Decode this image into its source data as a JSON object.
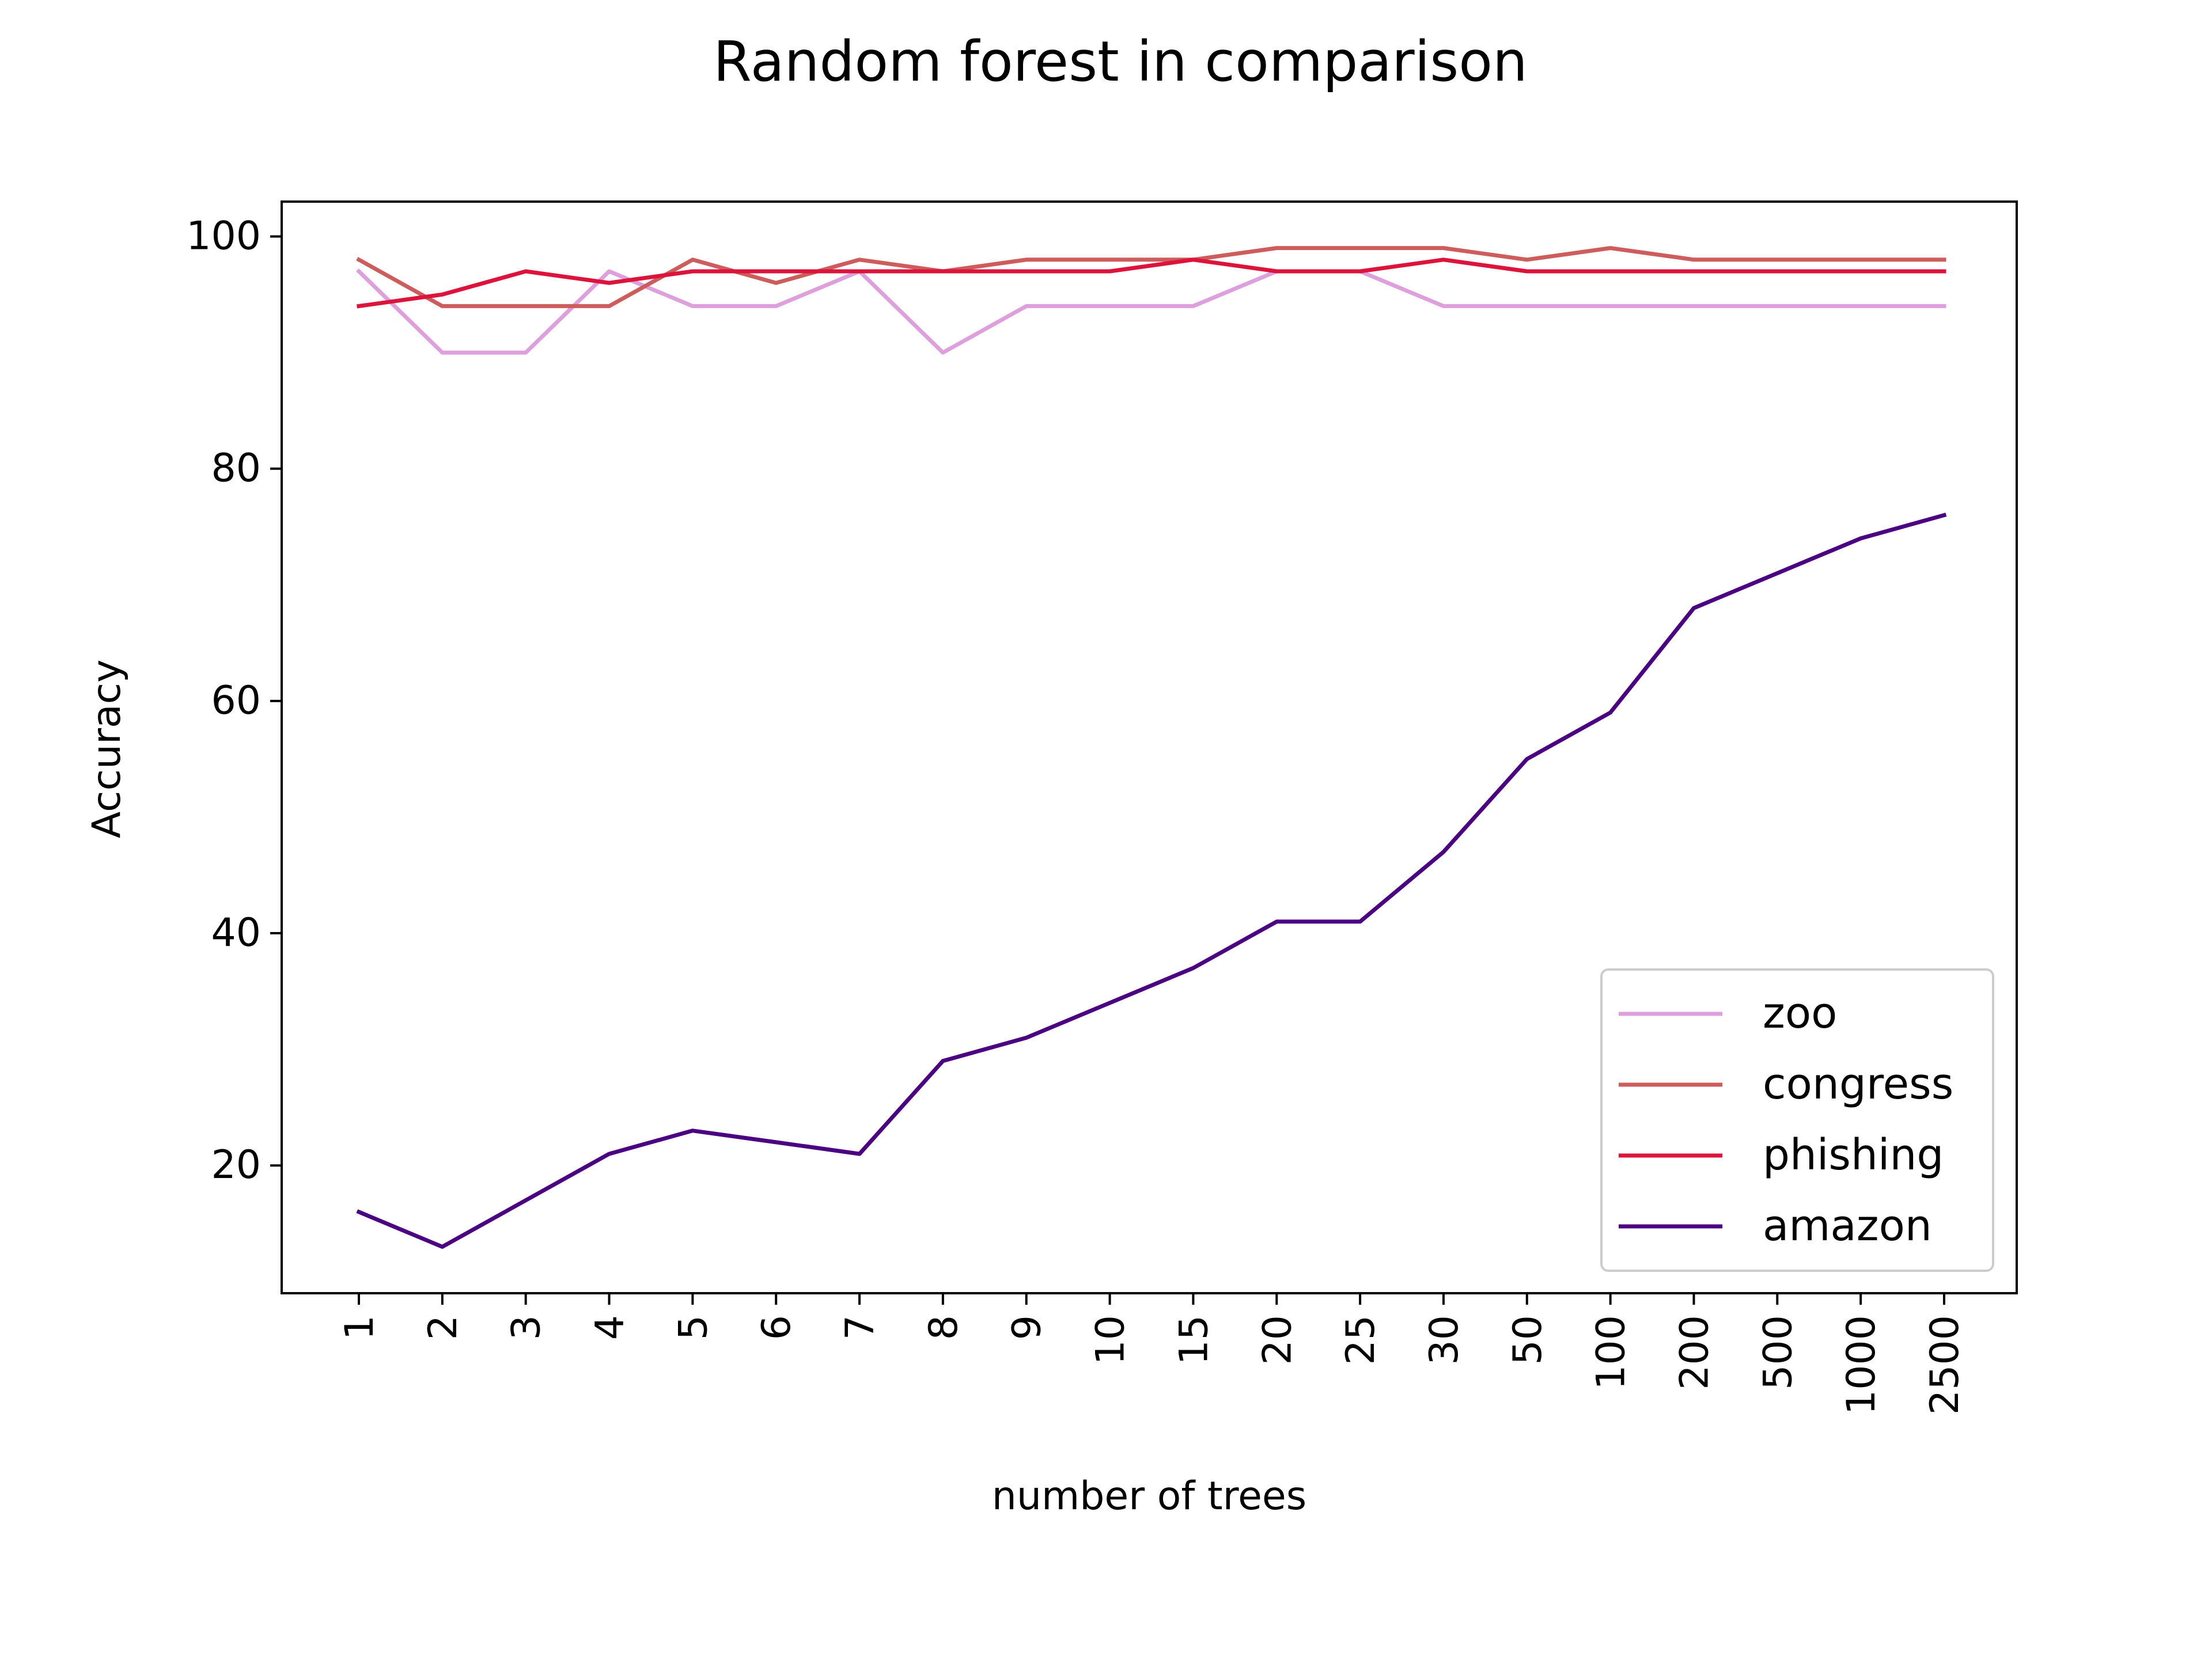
{
  "chart_data": {
    "type": "line",
    "title": "Random forest in comparison",
    "xlabel": "number of trees",
    "ylabel": "Accuracy",
    "categories": [
      "1",
      "2",
      "3",
      "4",
      "5",
      "6",
      "7",
      "8",
      "9",
      "10",
      "15",
      "20",
      "25",
      "30",
      "50",
      "100",
      "200",
      "500",
      "1000",
      "2500"
    ],
    "ylim": [
      9,
      103
    ],
    "yticks": [
      20,
      40,
      60,
      80,
      100
    ],
    "grid": false,
    "legend_position": "lower right",
    "series": [
      {
        "name": "zoo",
        "color": "#dda0dd",
        "values": [
          97,
          90,
          90,
          97,
          94,
          94,
          97,
          90,
          94,
          94,
          94,
          97,
          97,
          94,
          94,
          94,
          94,
          94,
          94,
          94
        ]
      },
      {
        "name": "congress",
        "color": "#cd5c5c",
        "values": [
          98,
          94,
          94,
          94,
          98,
          96,
          98,
          97,
          98,
          98,
          98,
          99,
          99,
          99,
          98,
          99,
          98,
          98,
          98,
          98
        ]
      },
      {
        "name": "phishing",
        "color": "#dc143c",
        "values": [
          94,
          95,
          97,
          96,
          97,
          97,
          97,
          97,
          97,
          97,
          98,
          97,
          97,
          98,
          97,
          97,
          97,
          97,
          97,
          97
        ]
      },
      {
        "name": "amazon",
        "color": "#4b0082",
        "values": [
          16,
          13,
          17,
          21,
          23,
          22,
          21,
          29,
          31,
          34,
          37,
          41,
          41,
          47,
          55,
          59,
          68,
          71,
          74,
          76
        ]
      }
    ]
  }
}
